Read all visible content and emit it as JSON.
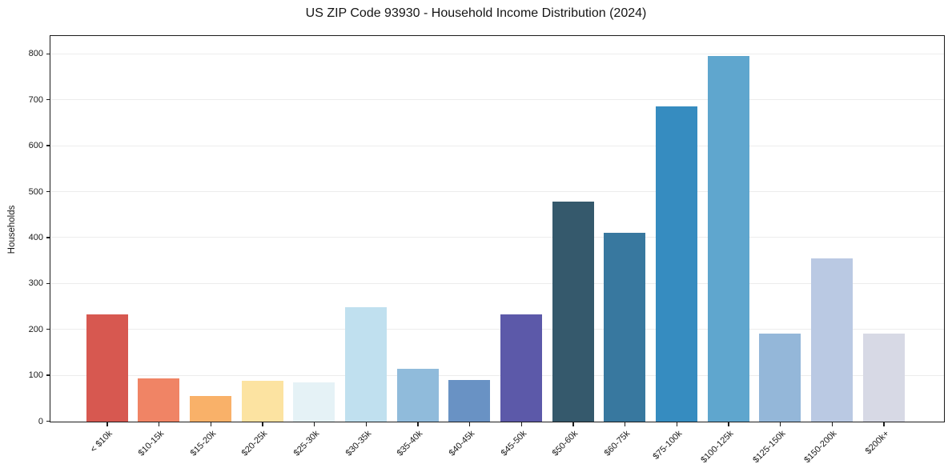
{
  "chart_data": {
    "type": "bar",
    "title": "US ZIP Code 93930 - Household Income Distribution (2024)",
    "xlabel": "",
    "ylabel": "Households",
    "categories": [
      "< $10k",
      "$10-15k",
      "$15-20k",
      "$20-25k",
      "$25-30k",
      "$30-35k",
      "$35-40k",
      "$40-45k",
      "$45-50k",
      "$50-60k",
      "$60-75k",
      "$75-100k",
      "$100-125k",
      "$125-150k",
      "$150-200k",
      "$200k+"
    ],
    "values": [
      233,
      94,
      56,
      89,
      85,
      249,
      115,
      91,
      233,
      480,
      412,
      686,
      797,
      192,
      355,
      192
    ],
    "bar_colors": [
      "#d75850",
      "#f08465",
      "#f9b169",
      "#fce3a1",
      "#e5f2f6",
      "#c0e0ef",
      "#90bbdb",
      "#6992c4",
      "#5c59a9",
      "#35596c",
      "#38789f",
      "#368cc0",
      "#5fa6ce",
      "#94b7d9",
      "#bac9e3",
      "#d7d9e5"
    ],
    "yticks": [
      0,
      100,
      200,
      300,
      400,
      500,
      600,
      700,
      800
    ],
    "ylim": [
      0,
      838
    ],
    "grid": "horizontal",
    "legend": "none",
    "x_tick_rotation_deg": 45,
    "colors": {
      "background": "#ffffff",
      "axis": "#1c1c1c",
      "gridline": "#ececec",
      "text": "#1a1a1a"
    }
  }
}
